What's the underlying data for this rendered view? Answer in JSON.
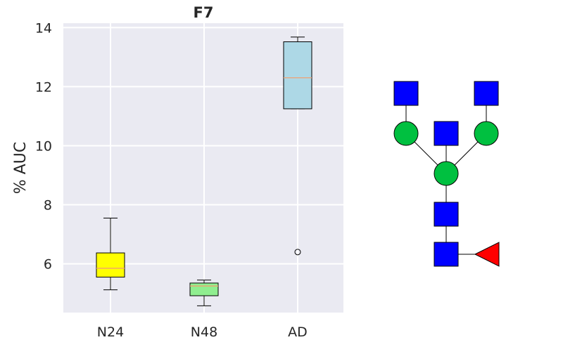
{
  "chart_data": {
    "type": "box",
    "title": "F7",
    "xlabel": "",
    "ylabel": "% AUC",
    "ylim": [
      4.35,
      14.15
    ],
    "yticks": [
      6,
      8,
      10,
      12,
      14
    ],
    "ytick_labels": [
      "6",
      "8",
      "10",
      "12",
      "14"
    ],
    "grid": true,
    "categories": [
      "N24",
      "N48",
      "AD"
    ],
    "boxes": [
      {
        "label": "N24",
        "whislo": 5.12,
        "q1": 5.55,
        "med": 5.85,
        "q3": 6.37,
        "whishi": 7.55,
        "fliers": [],
        "color": "#ffff00"
      },
      {
        "label": "N48",
        "whislo": 4.58,
        "q1": 4.92,
        "med": 5.25,
        "q3": 5.35,
        "whishi": 5.45,
        "fliers": [],
        "color": "#90ee90"
      },
      {
        "label": "AD",
        "whislo": 11.25,
        "q1": 11.25,
        "med": 12.3,
        "q3": 13.52,
        "whishi": 13.68,
        "fliers": [
          6.4
        ],
        "color": "#add8e6"
      }
    ],
    "median_color": "#f0a070"
  },
  "glycan": {
    "residues": [
      {
        "id": "n1",
        "type": "square",
        "color": "#0000ff"
      },
      {
        "id": "n2",
        "type": "square",
        "color": "#0000ff"
      },
      {
        "id": "fuc",
        "type": "triangle",
        "color": "#ff0000"
      },
      {
        "id": "man1",
        "type": "circle",
        "color": "#00c040"
      },
      {
        "id": "bisect",
        "type": "square",
        "color": "#0000ff"
      },
      {
        "id": "manL",
        "type": "circle",
        "color": "#00c040"
      },
      {
        "id": "manR",
        "type": "circle",
        "color": "#00c040"
      },
      {
        "id": "gnL",
        "type": "square",
        "color": "#0000ff"
      },
      {
        "id": "gnR",
        "type": "square",
        "color": "#0000ff"
      }
    ]
  }
}
